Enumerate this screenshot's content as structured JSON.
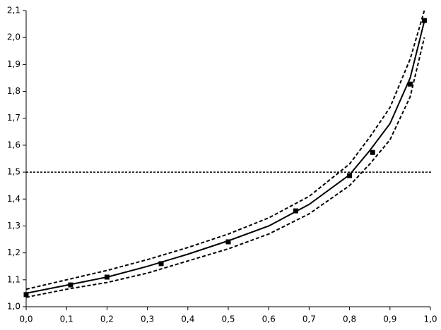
{
  "chart_data": {
    "type": "line",
    "xlim": [
      0,
      1
    ],
    "ylim": [
      1.0,
      2.1
    ],
    "xticks": [
      {
        "value": 0,
        "label": "0,0"
      },
      {
        "value": 0.1,
        "label": "0,1"
      },
      {
        "value": 0.2,
        "label": "0,2"
      },
      {
        "value": 0.3,
        "label": "0,3"
      },
      {
        "value": 0.4,
        "label": "0,4"
      },
      {
        "value": 0.5,
        "label": "0,5"
      },
      {
        "value": 0.6,
        "label": "0,6"
      },
      {
        "value": 0.7,
        "label": "0,7"
      },
      {
        "value": 0.8,
        "label": "0,8"
      },
      {
        "value": 0.9,
        "label": "0,9"
      },
      {
        "value": 1,
        "label": "1,0"
      }
    ],
    "yticks": [
      {
        "value": 1.0,
        "label": "1,0"
      },
      {
        "value": 1.1,
        "label": "1,1"
      },
      {
        "value": 1.2,
        "label": "1,2"
      },
      {
        "value": 1.3,
        "label": "1,3"
      },
      {
        "value": 1.4,
        "label": "1,4"
      },
      {
        "value": 1.5,
        "label": "1,5"
      },
      {
        "value": 1.6,
        "label": "1,6"
      },
      {
        "value": 1.7,
        "label": "1,7"
      },
      {
        "value": 1.8,
        "label": "1,8"
      },
      {
        "value": 1.9,
        "label": "1,9"
      },
      {
        "value": 2.0,
        "label": "2,0"
      },
      {
        "value": 2.1,
        "label": "2,1"
      }
    ],
    "hline": 1.5,
    "series": [
      {
        "style": "solid",
        "color": "#000000",
        "x": [
          0,
          0.1,
          0.2,
          0.3,
          0.4,
          0.5,
          0.6,
          0.7,
          0.8,
          0.85,
          0.9,
          0.95,
          0.985
        ],
        "values": [
          1.05,
          1.08,
          1.11,
          1.15,
          1.195,
          1.245,
          1.3,
          1.38,
          1.49,
          1.58,
          1.68,
          1.85,
          2.06
        ]
      },
      {
        "style": "dashed",
        "color": "#000000",
        "x": [
          0,
          0.1,
          0.2,
          0.3,
          0.4,
          0.5,
          0.6,
          0.7,
          0.8,
          0.85,
          0.9,
          0.95,
          0.985
        ],
        "values": [
          1.065,
          1.1,
          1.135,
          1.175,
          1.22,
          1.27,
          1.33,
          1.41,
          1.53,
          1.63,
          1.74,
          1.92,
          2.1
        ]
      },
      {
        "style": "dashed",
        "color": "#000000",
        "x": [
          0,
          0.1,
          0.2,
          0.3,
          0.4,
          0.5,
          0.6,
          0.7,
          0.8,
          0.85,
          0.9,
          0.95,
          0.985
        ],
        "values": [
          1.035,
          1.065,
          1.09,
          1.125,
          1.17,
          1.215,
          1.27,
          1.345,
          1.45,
          1.53,
          1.62,
          1.78,
          2.0
        ]
      },
      {
        "style": "markers",
        "color": "#000000",
        "x": [
          0,
          0.11,
          0.2,
          0.334,
          0.5,
          0.667,
          0.8,
          0.857,
          0.95,
          0.985
        ],
        "values": [
          1.045,
          1.081,
          1.11,
          1.16,
          1.241,
          1.356,
          1.487,
          1.573,
          1.827,
          2.063
        ]
      }
    ]
  }
}
